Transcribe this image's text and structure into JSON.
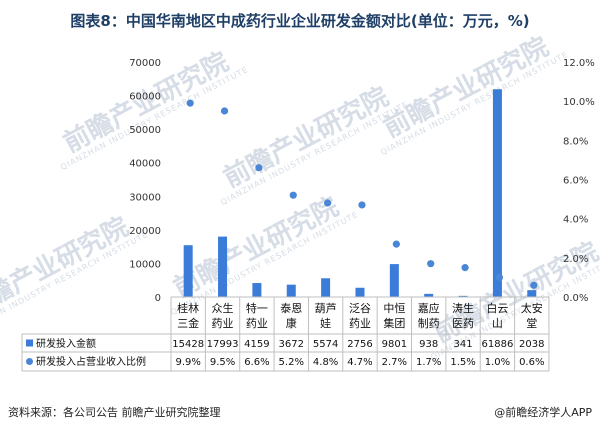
{
  "title": "图表8：中国华南地区中成药行业企业研发金额对比(单位：万元，%)",
  "source": "资料来源：各公司公告 前瞻产业研究院整理",
  "brand": "@前瞻经济学人APP",
  "watermark": {
    "text": "前瞻产业研究院",
    "subtext": "QIANZHAN INDUSTRY RESEARCH INSTITUTE"
  },
  "colors": {
    "bar": "#3a7cd8",
    "point": "#4a86d6",
    "grid": "#bfbfbf",
    "title": "#1f3f66"
  },
  "chart_data": {
    "type": "bar",
    "title": "图表8：中国华南地区中成药行业企业研发金额对比(单位：万元，%)",
    "categories": [
      [
        "桂林",
        "三金"
      ],
      [
        "众生",
        "药业"
      ],
      [
        "特一",
        "药业"
      ],
      [
        "泰恩",
        "康"
      ],
      [
        "葫芦",
        "娃"
      ],
      [
        "泛谷",
        "药业"
      ],
      [
        "中恒",
        "集团"
      ],
      [
        "嘉应",
        "制药"
      ],
      [
        "涛生",
        "医药"
      ],
      [
        "白云",
        "山"
      ],
      [
        "太安",
        "堂"
      ]
    ],
    "y_left": {
      "min": 0,
      "max": 70000,
      "step": 10000,
      "ticks": [
        "0",
        "10000",
        "20000",
        "30000",
        "40000",
        "50000",
        "60000",
        "70000"
      ]
    },
    "y_right": {
      "min": 0,
      "max": 12,
      "step": 2,
      "ticks": [
        "0.0%",
        "2.0%",
        "4.0%",
        "6.0%",
        "8.0%",
        "10.0%",
        "12.0%"
      ]
    },
    "series": [
      {
        "name": "研发投入金额",
        "type": "bar",
        "axis": "left",
        "values": [
          15428,
          17993,
          4159,
          3672,
          5574,
          2756,
          9801,
          938,
          341,
          61886,
          2038
        ],
        "labels": [
          "15428",
          "17993",
          "4159",
          "3672",
          "5574",
          "2756",
          "9801",
          "938",
          "341",
          "61886",
          "2038"
        ]
      },
      {
        "name": "研发投入占营业收入比例",
        "type": "scatter",
        "axis": "right",
        "values": [
          9.9,
          9.5,
          6.6,
          5.2,
          4.8,
          4.7,
          2.7,
          1.7,
          1.5,
          1.0,
          0.6
        ],
        "labels": [
          "9.9%",
          "9.5%",
          "6.6%",
          "5.2%",
          "4.8%",
          "4.7%",
          "2.7%",
          "1.7%",
          "1.5%",
          "1.0%",
          "0.6%"
        ]
      }
    ],
    "legend": "table-below"
  }
}
